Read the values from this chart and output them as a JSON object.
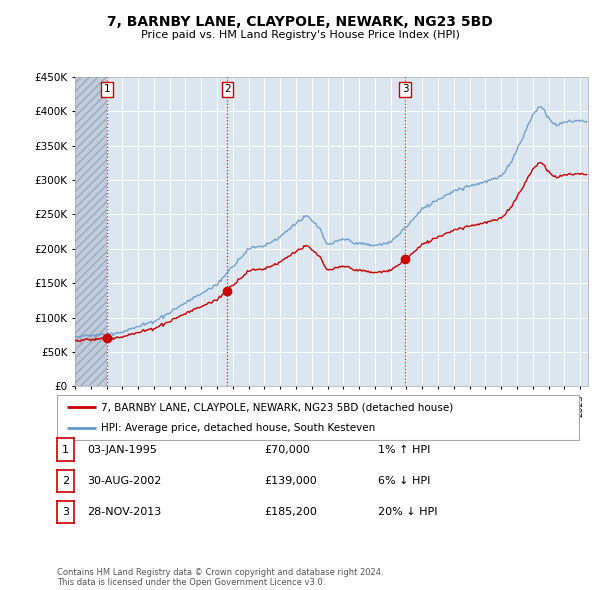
{
  "title": "7, BARNBY LANE, CLAYPOLE, NEWARK, NG23 5BD",
  "subtitle": "Price paid vs. HM Land Registry's House Price Index (HPI)",
  "ylim": [
    0,
    450000
  ],
  "yticks": [
    0,
    50000,
    100000,
    150000,
    200000,
    250000,
    300000,
    350000,
    400000,
    450000
  ],
  "ytick_labels": [
    "£0",
    "£50K",
    "£100K",
    "£150K",
    "£200K",
    "£250K",
    "£300K",
    "£350K",
    "£400K",
    "£450K"
  ],
  "legend_property_label": "7, BARNBY LANE, CLAYPOLE, NEWARK, NG23 5BD (detached house)",
  "legend_hpi_label": "HPI: Average price, detached house, South Kesteven",
  "property_color": "#cc0000",
  "hpi_color": "#6699cc",
  "purchases": [
    {
      "date_num": 1995.01,
      "price": 70000,
      "label": "1"
    },
    {
      "date_num": 2002.66,
      "price": 139000,
      "label": "2"
    },
    {
      "date_num": 2013.91,
      "price": 185200,
      "label": "3"
    }
  ],
  "table_rows": [
    {
      "num": "1",
      "date": "03-JAN-1995",
      "price": "£70,000",
      "hpi_rel": "1% ↑ HPI"
    },
    {
      "num": "2",
      "date": "30-AUG-2002",
      "price": "£139,000",
      "hpi_rel": "6% ↓ HPI"
    },
    {
      "num": "3",
      "date": "28-NOV-2013",
      "price": "£185,200",
      "hpi_rel": "20% ↓ HPI"
    }
  ],
  "footer": "Contains HM Land Registry data © Crown copyright and database right 2024.\nThis data is licensed under the Open Government Licence v3.0.",
  "bg_color": "#ffffff",
  "plot_bg_color": "#dce6f1",
  "grid_color": "#ffffff",
  "xlim_start": 1993.0,
  "xlim_end": 2025.5,
  "hatch_end": 1995.01
}
